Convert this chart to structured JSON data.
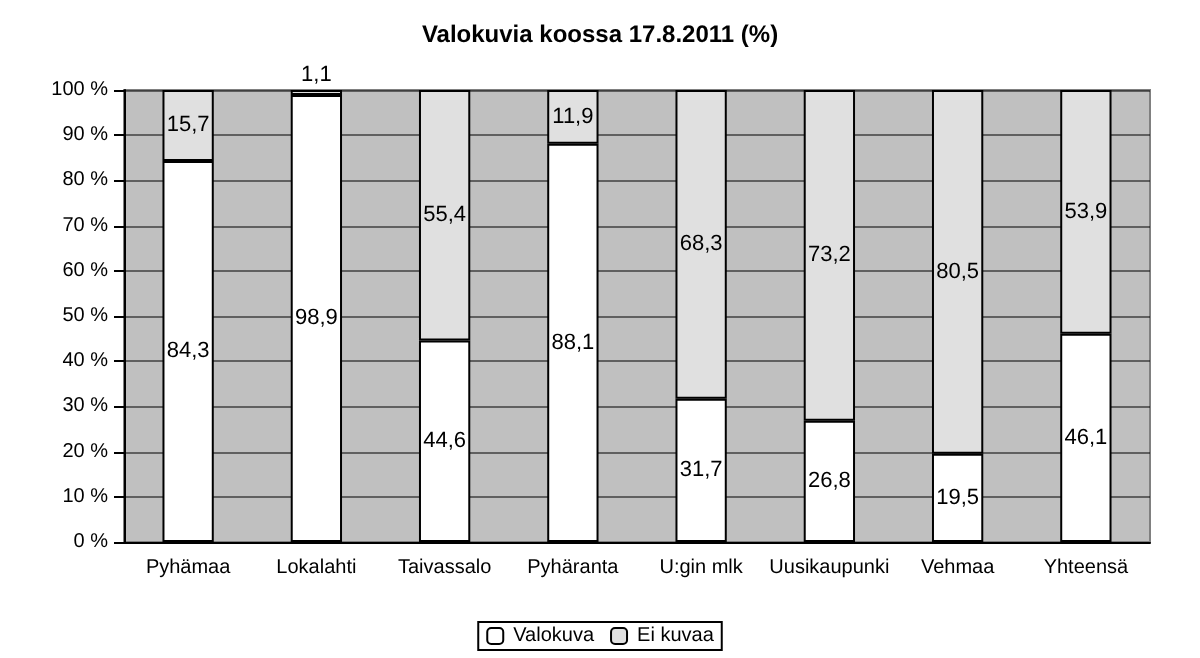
{
  "chart_data": {
    "type": "bar",
    "title": "Valokuvia koossa 17.8.2011 (%)",
    "stacked": true,
    "categories": [
      "Pyhämaa",
      "Lokalahti",
      "Taivassalo",
      "Pyhäranta",
      "U:gin mlk",
      "Uusikaupunki",
      "Vehmaa",
      "Yhteensä"
    ],
    "series": [
      {
        "name": "Valokuva",
        "color": "#ffffff",
        "values": [
          84.3,
          98.9,
          44.6,
          88.1,
          31.7,
          26.8,
          19.5,
          46.1
        ],
        "value_labels": [
          "84,3",
          "98,9",
          "44,6",
          "88,1",
          "31,7",
          "26,8",
          "19,5",
          "46,1"
        ]
      },
      {
        "name": "Ei kuvaa",
        "color": "#e0e0e0",
        "values": [
          15.7,
          1.1,
          55.4,
          11.9,
          68.3,
          73.2,
          80.5,
          53.9
        ],
        "value_labels": [
          "15,7",
          "1,1",
          "55,4",
          "11,9",
          "68,3",
          "73,2",
          "80,5",
          "53,9"
        ]
      }
    ],
    "ylim": [
      0,
      100
    ],
    "yticks": [
      {
        "value": 0,
        "label": "0 %"
      },
      {
        "value": 10,
        "label": "10 %"
      },
      {
        "value": 20,
        "label": "20 %"
      },
      {
        "value": 30,
        "label": "30 %"
      },
      {
        "value": 40,
        "label": "40 %"
      },
      {
        "value": 50,
        "label": "50 %"
      },
      {
        "value": 60,
        "label": "60 %"
      },
      {
        "value": 70,
        "label": "70 %"
      },
      {
        "value": 80,
        "label": "80 %"
      },
      {
        "value": 90,
        "label": "90 %"
      },
      {
        "value": 100,
        "label": "100 %"
      }
    ],
    "grid": "y",
    "legend": "bottom"
  }
}
